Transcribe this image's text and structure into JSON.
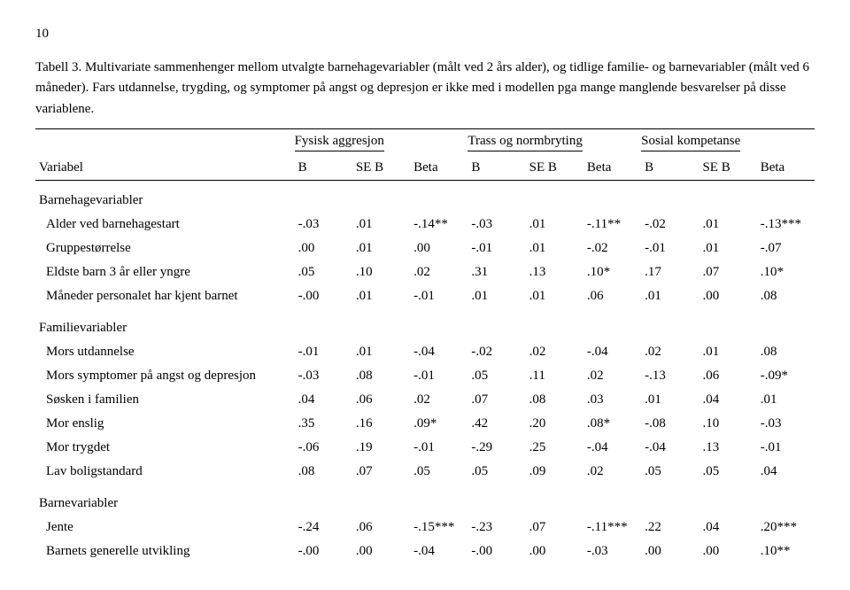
{
  "page_number": "10",
  "caption": "Tabell 3. Multivariate sammenhenger mellom utvalgte barnehagevariabler (målt ved 2 års alder), og tidlige familie- og barnevariabler (målt ved 6 måneder). Fars utdannelse, trygding, og symptomer på angst og depresjon er ikke med i modellen pga mange manglende besvarelser på disse variablene.",
  "group_headers": {
    "g1": "Fysisk aggresjon",
    "g2": "Trass og normbryting",
    "g3": "Sosial kompetanse"
  },
  "col_headers": {
    "variabel": "Variabel",
    "b": "B",
    "seb": "SE B",
    "beta": "Beta"
  },
  "sections": {
    "s1": "Barnehagevariabler",
    "s2": "Familievariabler",
    "s3": "Barnevariabler"
  },
  "rows": {
    "r1": {
      "label": "Alder ved barnehagestart",
      "v": [
        "-.03",
        ".01",
        "-.14**",
        "-.03",
        ".01",
        "-.11**",
        "-.02",
        ".01",
        "-.13***"
      ]
    },
    "r2": {
      "label": "Gruppestørrelse",
      "v": [
        ".00",
        ".01",
        ".00",
        "-.01",
        ".01",
        "-.02",
        "-.01",
        ".01",
        "-.07"
      ]
    },
    "r3": {
      "label": "Eldste barn 3 år eller yngre",
      "v": [
        ".05",
        ".10",
        ".02",
        ".31",
        ".13",
        ".10*",
        ".17",
        ".07",
        ".10*"
      ]
    },
    "r4": {
      "label": "Måneder personalet har kjent barnet",
      "v": [
        "-.00",
        ".01",
        "-.01",
        ".01",
        ".01",
        ".06",
        ".01",
        ".00",
        ".08"
      ]
    },
    "r5": {
      "label": "Mors utdannelse",
      "v": [
        "-.01",
        ".01",
        "-.04",
        "-.02",
        ".02",
        "-.04",
        ".02",
        ".01",
        ".08"
      ]
    },
    "r6": {
      "label": "Mors symptomer på angst og depresjon",
      "v": [
        "-.03",
        ".08",
        "-.01",
        ".05",
        ".11",
        ".02",
        "-.13",
        ".06",
        "-.09*"
      ]
    },
    "r7": {
      "label": "Søsken i familien",
      "v": [
        ".04",
        ".06",
        ".02",
        ".07",
        ".08",
        ".03",
        ".01",
        ".04",
        ".01"
      ]
    },
    "r8": {
      "label": "Mor enslig",
      "v": [
        ".35",
        ".16",
        ".09*",
        ".42",
        ".20",
        ".08*",
        "-.08",
        ".10",
        "-.03"
      ]
    },
    "r9": {
      "label": "Mor trygdet",
      "v": [
        "-.06",
        ".19",
        "-.01",
        "-.29",
        ".25",
        "-.04",
        "-.04",
        ".13",
        "-.01"
      ]
    },
    "r10": {
      "label": "Lav boligstandard",
      "v": [
        ".08",
        ".07",
        ".05",
        ".05",
        ".09",
        ".02",
        ".05",
        ".05",
        ".04"
      ]
    },
    "r11": {
      "label": "Jente",
      "v": [
        "-.24",
        ".06",
        "-.15***",
        "-.23",
        ".07",
        "-.11***",
        ".22",
        ".04",
        ".20***"
      ]
    },
    "r12": {
      "label": "Barnets generelle utvikling",
      "v": [
        "-.00",
        ".00",
        "-.04",
        "-.00",
        ".00",
        "-.03",
        ".00",
        ".00",
        ".10**"
      ]
    }
  }
}
